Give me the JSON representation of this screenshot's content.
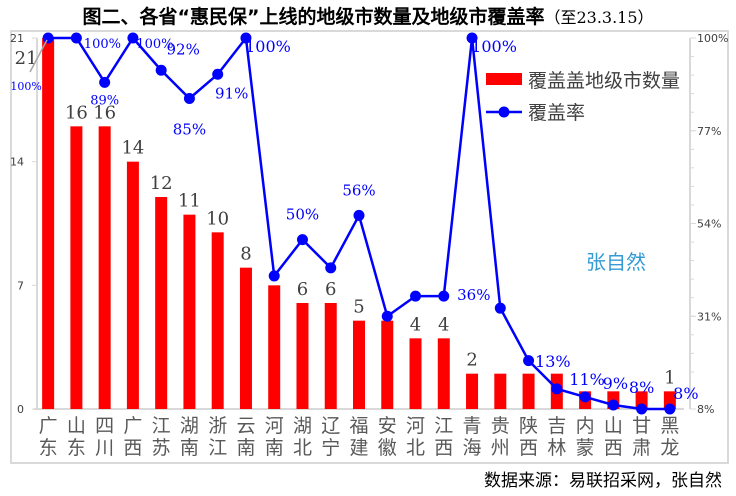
{
  "title": {
    "main": "图二、各省“惠民保”上线的地级市数量及地级市覆盖率",
    "sub": "（至23.3.15）"
  },
  "source": "数据来源：易联招采网，张自然",
  "watermark": "张自然",
  "colors": {
    "bar": "#ff0000",
    "line": "#0000ff",
    "axis": "#d9d9d9",
    "label": "#404040"
  },
  "chart_data": {
    "type": "bar+line",
    "title": "图二、各省“惠民保”上线的地级市数量及地级市覆盖率（至23.3.15）",
    "categories": [
      "广东",
      "山东",
      "四川",
      "广西",
      "江苏",
      "湖南",
      "浙江",
      "云南",
      "河南",
      "湖北",
      "辽宁",
      "福建",
      "安徽",
      "河北",
      "江西",
      "青海",
      "贵州",
      "陕西",
      "吉林",
      "内蒙",
      "山西",
      "甘肃",
      "黑龙"
    ],
    "series": [
      {
        "name": "覆盖地级市数量",
        "type": "bar",
        "axis": "left",
        "values": [
          21,
          16,
          16,
          14,
          12,
          11,
          10,
          8,
          7,
          6,
          6,
          5,
          5,
          4,
          4,
          2,
          2,
          2,
          2,
          1,
          1,
          1,
          1
        ],
        "labels": [
          "21",
          "16",
          "16",
          "14",
          "12",
          "11",
          "10",
          "8",
          null,
          "6",
          "6",
          "5",
          null,
          "4",
          "4",
          "2",
          null,
          null,
          null,
          null,
          null,
          null,
          "1"
        ]
      },
      {
        "name": "覆盖率",
        "type": "line",
        "axis": "right",
        "values": [
          100,
          100,
          89,
          100,
          92,
          85,
          91,
          100,
          41,
          50,
          43,
          56,
          31,
          36,
          36,
          100,
          33,
          20,
          13,
          11,
          9,
          8,
          8
        ],
        "labels": [
          "100%",
          "100%",
          "89%",
          "100%",
          "92%",
          "85%",
          "91%",
          "100%",
          null,
          "50%",
          null,
          "56%",
          null,
          null,
          "36%",
          "100%",
          null,
          null,
          "13%",
          "11%",
          "9%",
          "8%",
          "8%"
        ]
      }
    ],
    "left_axis": {
      "ylim": [
        0,
        21
      ],
      "ticks": [
        "0",
        "7",
        "14",
        "21"
      ]
    },
    "right_axis": {
      "ylim": [
        8,
        100
      ],
      "ticks": [
        "8%",
        "31%",
        "54%",
        "77%",
        "100%"
      ]
    },
    "legend": {
      "position": "top-right",
      "entries": [
        "覆盖盖地级市数量",
        "覆盖率"
      ]
    },
    "grid": false
  }
}
